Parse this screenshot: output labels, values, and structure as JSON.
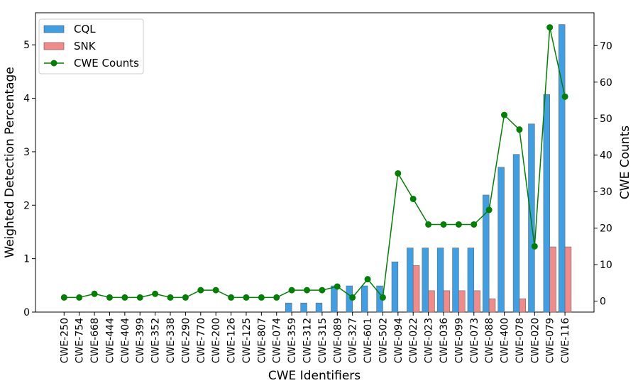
{
  "chart_data": {
    "type": "bar",
    "xlabel": "CWE Identifiers",
    "ylabel": "Weighted Detection Percentage",
    "y2label": "CWE Counts",
    "ylim": [
      0,
      5.6
    ],
    "y2lim": [
      -3,
      79
    ],
    "yticks": [
      "0",
      "1",
      "2",
      "3",
      "4",
      "5"
    ],
    "y2ticks": [
      "0",
      "10",
      "20",
      "30",
      "40",
      "50",
      "60",
      "70"
    ],
    "categories": [
      "CWE-250",
      "CWE-754",
      "CWE-668",
      "CWE-444",
      "CWE-404",
      "CWE-399",
      "CWE-352",
      "CWE-338",
      "CWE-290",
      "CWE-770",
      "CWE-200",
      "CWE-126",
      "CWE-125",
      "CWE-807",
      "CWE-074",
      "CWE-359",
      "CWE-312",
      "CWE-315",
      "CWE-089",
      "CWE-327",
      "CWE-601",
      "CWE-502",
      "CWE-094",
      "CWE-022",
      "CWE-023",
      "CWE-036",
      "CWE-099",
      "CWE-073",
      "CWE-088",
      "CWE-400",
      "CWE-078",
      "CWE-020",
      "CWE-079",
      "CWE-116"
    ],
    "series": [
      {
        "name": "CQL",
        "kind": "bar",
        "color": "#3f9fe5",
        "values": [
          0,
          0,
          0,
          0,
          0,
          0,
          0,
          0,
          0,
          0,
          0,
          0,
          0,
          0,
          0,
          0.17,
          0.17,
          0.17,
          0.49,
          0.49,
          0.49,
          0.49,
          0.94,
          1.2,
          1.2,
          1.2,
          1.2,
          1.2,
          2.19,
          2.71,
          2.95,
          3.52,
          4.07,
          5.38
        ]
      },
      {
        "name": "SNK",
        "kind": "bar",
        "color": "#f28a8a",
        "values": [
          0,
          0,
          0,
          0,
          0,
          0,
          0,
          0,
          0,
          0,
          0,
          0,
          0,
          0,
          0,
          0,
          0,
          0,
          0,
          0,
          0,
          0,
          0,
          0.87,
          0.4,
          0.4,
          0.4,
          0.4,
          0.25,
          0,
          0.25,
          0,
          1.22,
          1.22
        ]
      },
      {
        "name": "CWE Counts",
        "kind": "line",
        "axis": "right",
        "color": "#008000",
        "values": [
          1,
          1,
          2,
          1,
          1,
          1,
          2,
          1,
          1,
          3,
          3,
          1,
          1,
          1,
          1,
          3,
          3,
          3,
          4,
          1,
          6,
          1,
          35,
          28,
          21,
          21,
          21,
          21,
          25,
          51,
          47,
          15,
          75,
          56
        ]
      }
    ],
    "legend_position": "top-left",
    "grid": false
  }
}
